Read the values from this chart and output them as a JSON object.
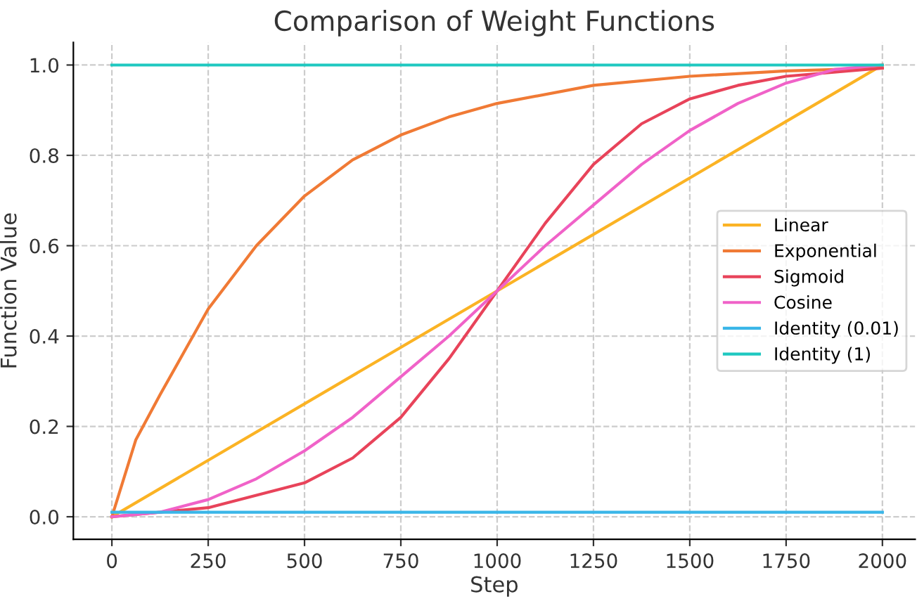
{
  "chart_data": {
    "type": "line",
    "title": "Comparison of Weight Functions",
    "xlabel": "Step",
    "ylabel": "Function Value",
    "xlim": [
      -100,
      2085
    ],
    "ylim": [
      -0.05,
      1.05
    ],
    "xticks": [
      0,
      250,
      500,
      750,
      1000,
      1250,
      1500,
      1750,
      2000
    ],
    "yticks": [
      {
        "value": 0,
        "label": "0.0"
      },
      {
        "value": 0.2,
        "label": "0.2"
      },
      {
        "value": 0.4,
        "label": "0.4"
      },
      {
        "value": 0.6,
        "label": "0.6"
      },
      {
        "value": 0.8,
        "label": "0.8"
      },
      {
        "value": 1,
        "label": "1.0"
      }
    ],
    "grid": true,
    "legend": "right",
    "line_style": "solid",
    "marker": "none",
    "series": [
      {
        "name": "Linear",
        "color": "#fbb324",
        "x": [
          0,
          2000
        ],
        "values": [
          0,
          1
        ]
      },
      {
        "name": "Exponential",
        "color": "#f07a35",
        "x": [
          0,
          62,
          125,
          250,
          375,
          500,
          625,
          750,
          875,
          1000,
          1250,
          1500,
          1750,
          2000
        ],
        "values": [
          0,
          0.17,
          0.27,
          0.46,
          0.6,
          0.71,
          0.79,
          0.845,
          0.885,
          0.915,
          0.955,
          0.975,
          0.987,
          0.993
        ]
      },
      {
        "name": "Sigmoid",
        "color": "#e8435a",
        "x": [
          0,
          250,
          500,
          625,
          750,
          875,
          1000,
          1125,
          1250,
          1375,
          1500,
          1625,
          1750,
          2000
        ],
        "values": [
          0,
          0.02,
          0.075,
          0.13,
          0.22,
          0.35,
          0.5,
          0.65,
          0.78,
          0.87,
          0.925,
          0.955,
          0.975,
          0.993
        ]
      },
      {
        "name": "Cosine",
        "color": "#f062c8",
        "x": [
          0,
          125,
          250,
          375,
          500,
          625,
          750,
          875,
          1000,
          1125,
          1250,
          1375,
          1500,
          1625,
          1750,
          1875,
          2000
        ],
        "values": [
          0,
          0.01,
          0.038,
          0.084,
          0.146,
          0.22,
          0.31,
          0.4,
          0.5,
          0.6,
          0.69,
          0.78,
          0.855,
          0.915,
          0.96,
          0.99,
          1.0
        ]
      },
      {
        "name": "Identity (0.01)",
        "color": "#3ab6e8",
        "x": [
          0,
          2000
        ],
        "values": [
          0.01,
          0.01
        ]
      },
      {
        "name": "Identity (1)",
        "color": "#1fc8c0",
        "x": [
          0,
          2000
        ],
        "values": [
          1,
          1
        ]
      }
    ]
  }
}
